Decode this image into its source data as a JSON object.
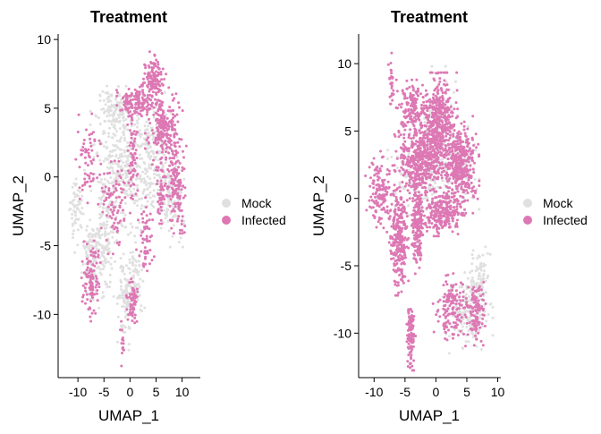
{
  "colors": {
    "mock": "#e0e0e0",
    "infected": "#dd78b4",
    "axis": "#000000"
  },
  "chart_data": [
    {
      "type": "scatter",
      "title": "Treatment",
      "xlabel": "UMAP_1",
      "ylabel": "UMAP_2",
      "xlim": [
        -13.8,
        13.5
      ],
      "ylim": [
        -14.6,
        10.4
      ],
      "xticks": [
        -10,
        -5,
        0,
        5,
        10
      ],
      "yticks": [
        10,
        5,
        0,
        -5,
        -10
      ],
      "legend": {
        "position": "right",
        "entries": [
          "Mock",
          "Infected"
        ]
      },
      "series": [
        {
          "name": "Mock",
          "clusters": [
            {
              "cx": -1.0,
              "cy": 0.5,
              "rx": 5.5,
              "ry": 4.5,
              "n": 380
            },
            {
              "cx": -10.2,
              "cy": -2.5,
              "rx": 1.2,
              "ry": 2.5,
              "n": 60
            },
            {
              "cx": -7.5,
              "cy": -6.0,
              "rx": 1.8,
              "ry": 3.0,
              "n": 110
            },
            {
              "cx": -5.0,
              "cy": -4.5,
              "rx": 2.0,
              "ry": 3.5,
              "n": 130
            },
            {
              "cx": -1.0,
              "cy": -9.0,
              "rx": 1.2,
              "ry": 3.0,
              "n": 90
            },
            {
              "cx": 1.0,
              "cy": -7.5,
              "rx": 1.5,
              "ry": 2.5,
              "n": 80
            },
            {
              "cx": 5.5,
              "cy": 2.0,
              "rx": 3.0,
              "ry": 4.0,
              "n": 160
            },
            {
              "cx": 8.0,
              "cy": -1.5,
              "rx": 2.0,
              "ry": 3.0,
              "n": 100
            },
            {
              "cx": -3.0,
              "cy": 5.0,
              "rx": 3.0,
              "ry": 1.5,
              "n": 110
            }
          ]
        },
        {
          "name": "Infected",
          "clusters": [
            {
              "cx": 1.0,
              "cy": 5.5,
              "rx": 3.0,
              "ry": 1.0,
              "n": 130
            },
            {
              "cx": 4.5,
              "cy": 7.0,
              "rx": 2.0,
              "ry": 1.8,
              "n": 140
            },
            {
              "cx": 6.5,
              "cy": 3.5,
              "rx": 3.0,
              "ry": 2.5,
              "n": 220
            },
            {
              "cx": 9.0,
              "cy": -0.5,
              "rx": 1.5,
              "ry": 3.0,
              "n": 140
            },
            {
              "cx": 0.5,
              "cy": 1.5,
              "rx": 0.8,
              "ry": 3.0,
              "n": 70
            },
            {
              "cx": -7.5,
              "cy": -7.5,
              "rx": 1.5,
              "ry": 2.5,
              "n": 110
            },
            {
              "cx": 0.5,
              "cy": -9.0,
              "rx": 1.0,
              "ry": 1.6,
              "n": 60
            },
            {
              "cx": -3.0,
              "cy": -2.0,
              "rx": 3.0,
              "ry": 3.0,
              "n": 90
            },
            {
              "cx": -8.0,
              "cy": 1.0,
              "rx": 2.0,
              "ry": 3.0,
              "n": 60
            },
            {
              "cx": -1.5,
              "cy": -12.0,
              "rx": 0.4,
              "ry": 1.5,
              "n": 15
            },
            {
              "cx": 3.0,
              "cy": -4.5,
              "rx": 1.5,
              "ry": 2.5,
              "n": 60
            },
            {
              "cx": 6.0,
              "cy": -1.0,
              "rx": 1.0,
              "ry": 2.0,
              "n": 50
            }
          ]
        }
      ]
    },
    {
      "type": "scatter",
      "title": "Treatment",
      "xlabel": "UMAP_1",
      "ylabel": "UMAP_2",
      "xlim": [
        -12.5,
        10.5
      ],
      "ylim": [
        -13.3,
        12.2
      ],
      "xticks": [
        -10,
        -5,
        0,
        5,
        10
      ],
      "yticks": [
        10,
        5,
        0,
        -5,
        -10
      ],
      "legend": {
        "position": "right",
        "entries": [
          "Mock",
          "Infected"
        ]
      },
      "series": [
        {
          "name": "Mock",
          "clusters": [
            {
              "cx": 0.5,
              "cy": 5.0,
              "rx": 3.0,
              "ry": 4.0,
              "n": 120
            },
            {
              "cx": 5.0,
              "cy": -8.5,
              "rx": 3.5,
              "ry": 2.5,
              "n": 170
            },
            {
              "cx": 7.0,
              "cy": -6.0,
              "rx": 1.5,
              "ry": 2.0,
              "n": 90
            },
            {
              "cx": -3.0,
              "cy": 1.5,
              "rx": 4.0,
              "ry": 3.0,
              "n": 120
            },
            {
              "cx": 4.0,
              "cy": 2.0,
              "rx": 2.5,
              "ry": 3.0,
              "n": 90
            }
          ]
        },
        {
          "name": "Infected",
          "clusters": [
            {
              "cx": 0.5,
              "cy": 5.5,
              "rx": 2.5,
              "ry": 3.2,
              "n": 420
            },
            {
              "cx": -2.5,
              "cy": 3.0,
              "rx": 3.5,
              "ry": 2.5,
              "n": 500
            },
            {
              "cx": 4.0,
              "cy": 2.5,
              "rx": 2.5,
              "ry": 3.0,
              "n": 380
            },
            {
              "cx": 1.0,
              "cy": -1.0,
              "rx": 3.0,
              "ry": 1.5,
              "n": 260
            },
            {
              "cx": -6.0,
              "cy": -3.0,
              "rx": 1.3,
              "ry": 3.5,
              "n": 270
            },
            {
              "cx": -3.0,
              "cy": -2.0,
              "rx": 1.0,
              "ry": 3.0,
              "n": 180
            },
            {
              "cx": -9.0,
              "cy": 0.5,
              "rx": 2.0,
              "ry": 2.5,
              "n": 140
            },
            {
              "cx": -4.0,
              "cy": -10.0,
              "rx": 0.6,
              "ry": 2.3,
              "n": 110
            },
            {
              "cx": -7.2,
              "cy": 8.5,
              "rx": 0.4,
              "ry": 2.0,
              "n": 30
            },
            {
              "cx": 2.5,
              "cy": -8.0,
              "rx": 2.5,
              "ry": 2.5,
              "n": 150
            },
            {
              "cx": 6.5,
              "cy": -8.5,
              "rx": 1.3,
              "ry": 2.0,
              "n": 110
            },
            {
              "cx": -4.0,
              "cy": 7.0,
              "rx": 2.0,
              "ry": 1.5,
              "n": 130
            }
          ]
        }
      ]
    }
  ]
}
